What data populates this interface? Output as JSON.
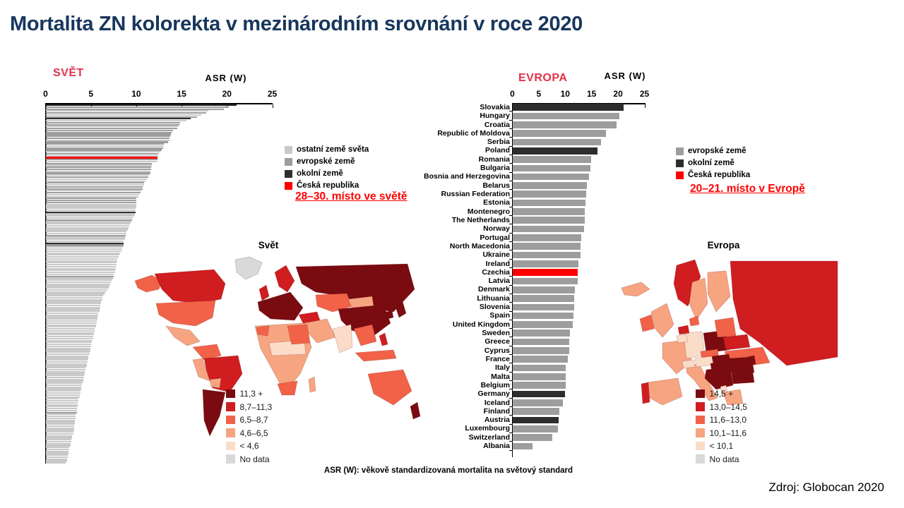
{
  "title": "Mortalita ZN kolorekta v mezinárodním srovnání v roce 2020",
  "source": "Zdroj: Globocan 2020",
  "footnote": "ASR (W): věkově standardizovaná mortalita na světový standard",
  "accent_colors": {
    "heading_red": "#e2314a",
    "note_red": "#fe0000",
    "title_navy": "#17365d"
  },
  "bar_palette": {
    "world_other": "#c9c9c9",
    "european": "#9d9d9d",
    "neighbor": "#2d2d2d",
    "czech": "#fe0000"
  },
  "map_palette": {
    "band1": "#7a0b10",
    "band2": "#cf1d20",
    "band3": "#f16248",
    "band4": "#f7a481",
    "band5": "#fbdcc9",
    "nodata": "#d9d9d9"
  },
  "world_chart": {
    "heading": "SVĚT",
    "axis_label": "ASR (W)",
    "rank_note": "28–30. místo ve světě",
    "legend": [
      {
        "label": "ostatní země světa",
        "color": "#c9c9c9"
      },
      {
        "label": "evropské země",
        "color": "#9d9d9d"
      },
      {
        "label": "okolní země",
        "color": "#2d2d2d"
      },
      {
        "label": "Česká republika",
        "color": "#fe0000"
      }
    ]
  },
  "europe_chart": {
    "heading": "EVROPA",
    "axis_label": "ASR (W)",
    "rank_note": "20–21. místo v Evropě",
    "legend": [
      {
        "label": "evropské země",
        "color": "#9d9d9d"
      },
      {
        "label": "okolní země",
        "color": "#2d2d2d"
      },
      {
        "label": "Česká republika",
        "color": "#fe0000"
      }
    ]
  },
  "world_map": {
    "title": "Svět",
    "legend": [
      {
        "label": "11,3 +",
        "color": "#7a0b10"
      },
      {
        "label": "8,7–11,3",
        "color": "#cf1d20"
      },
      {
        "label": "6,5–8,7",
        "color": "#f16248"
      },
      {
        "label": "4,6–6,5",
        "color": "#f7a481"
      },
      {
        "label": "< 4,6",
        "color": "#fbdcc9"
      },
      {
        "label": "No data",
        "color": "#d9d9d9"
      }
    ]
  },
  "europe_map": {
    "title": "Evropa",
    "legend": [
      {
        "label": "14,5 +",
        "color": "#7a0b10"
      },
      {
        "label": "13,0–14,5",
        "color": "#cf1d20"
      },
      {
        "label": "11,6–13,0",
        "color": "#f16248"
      },
      {
        "label": "10,1–11,6",
        "color": "#f7a481"
      },
      {
        "label": "< 10,1",
        "color": "#fbdcc9"
      },
      {
        "label": "No data",
        "color": "#d9d9d9"
      }
    ]
  },
  "chart_data": [
    {
      "type": "bar",
      "title": "SVĚT",
      "orientation": "horizontal",
      "xlabel": "ASR (W)",
      "xlim": [
        0,
        25
      ],
      "xticks": [
        0,
        5,
        10,
        15,
        20,
        25
      ],
      "values": [
        21.0,
        20.2,
        19.6,
        17.9,
        17.7,
        17.1,
        16.7,
        16.0,
        15.5,
        14.8,
        14.7,
        14.6,
        14.5,
        14.0,
        13.9,
        13.8,
        13.7,
        13.6,
        13.6,
        13.5,
        13.0,
        13.0,
        12.9,
        12.8,
        12.6,
        12.4,
        12.4,
        12.3,
        12.3,
        12.2,
        11.7,
        11.7,
        11.6,
        11.6,
        11.5,
        11.5,
        11.4,
        11.3,
        11.1,
        11.0,
        10.8,
        10.8,
        10.7,
        10.7,
        10.5,
        10.4,
        10.3,
        10.2,
        10.0,
        10.0,
        10.0,
        10.0,
        10.0,
        9.9,
        9.9,
        9.9,
        9.8,
        9.7,
        9.6,
        9.5,
        9.4,
        9.3,
        9.2,
        9.1,
        9.0,
        8.9,
        8.9,
        8.8,
        8.7,
        8.7,
        8.6,
        8.6,
        8.6,
        8.5,
        8.4,
        8.3,
        8.2,
        8.1,
        8.0,
        7.9,
        7.9,
        7.8,
        7.8,
        7.7,
        7.7,
        7.6,
        7.6,
        7.5,
        7.5,
        7.4,
        7.3,
        7.2,
        7.1,
        7.0,
        6.9,
        6.8,
        6.6,
        6.5,
        6.3,
        6.2,
        6.2,
        6.1,
        6.1,
        6.0,
        6.0,
        5.9,
        5.9,
        5.8,
        5.8,
        5.7,
        5.7,
        5.6,
        5.6,
        5.5,
        5.5,
        5.4,
        5.4,
        5.3,
        5.3,
        5.2,
        5.2,
        5.1,
        5.1,
        5.0,
        5.0,
        4.9,
        4.9,
        4.8,
        4.8,
        4.7,
        4.7,
        4.6,
        4.6,
        4.5,
        4.5,
        4.4,
        4.4,
        4.3,
        4.3,
        4.2,
        4.2,
        4.1,
        4.1,
        4.0,
        4.0,
        3.9,
        3.9,
        3.8,
        3.8,
        3.7,
        3.7,
        3.6,
        3.6,
        3.5,
        3.5,
        3.5,
        3.4,
        3.4,
        3.4,
        3.3,
        3.3,
        3.3,
        3.2,
        3.2,
        3.2,
        3.1,
        3.1,
        3.1,
        3.0,
        3.0,
        2.9,
        2.9,
        2.8,
        2.8,
        2.7,
        2.7,
        2.6,
        2.6,
        2.5,
        2.5,
        2.4,
        2.4,
        2.3,
        2.3,
        2.2
      ],
      "european_ranks": [
        2,
        3,
        5,
        7,
        10,
        11,
        13,
        14,
        15,
        16,
        17,
        18,
        20,
        21,
        23,
        24,
        26,
        29,
        31,
        33,
        34,
        36,
        38,
        41,
        43,
        44,
        46,
        49,
        50,
        51,
        60,
        68,
        73,
        89,
        159
      ],
      "neighbor_ranks": [
        1,
        8,
        56,
        72
      ],
      "czech_rank": 28,
      "czech_value": 12.3
    },
    {
      "type": "bar",
      "title": "EVROPA",
      "orientation": "horizontal",
      "xlabel": "ASR (W)",
      "xlim": [
        0,
        25
      ],
      "xticks": [
        0,
        5,
        10,
        15,
        20,
        25
      ],
      "countries": [
        {
          "name": "Slovakia",
          "value": 21.0,
          "type": "neighbor"
        },
        {
          "name": "Hungary",
          "value": 20.2,
          "type": "european"
        },
        {
          "name": "Croatia",
          "value": 19.6,
          "type": "european"
        },
        {
          "name": "Republic of Moldova",
          "value": 17.7,
          "type": "european"
        },
        {
          "name": "Serbia",
          "value": 16.7,
          "type": "european"
        },
        {
          "name": "Poland",
          "value": 16.0,
          "type": "neighbor"
        },
        {
          "name": "Romania",
          "value": 14.8,
          "type": "european"
        },
        {
          "name": "Bulgaria",
          "value": 14.7,
          "type": "european"
        },
        {
          "name": "Bosnia and Herzegovina",
          "value": 14.5,
          "type": "european"
        },
        {
          "name": "Belarus",
          "value": 14.0,
          "type": "european"
        },
        {
          "name": "Russian Federation",
          "value": 13.9,
          "type": "european"
        },
        {
          "name": "Estonia",
          "value": 13.8,
          "type": "european"
        },
        {
          "name": "Montenegro",
          "value": 13.7,
          "type": "european"
        },
        {
          "name": "The Netherlands",
          "value": 13.6,
          "type": "european"
        },
        {
          "name": "Norway",
          "value": 13.5,
          "type": "european"
        },
        {
          "name": "Portugal",
          "value": 13.0,
          "type": "european"
        },
        {
          "name": "North Macedonia",
          "value": 12.9,
          "type": "european"
        },
        {
          "name": "Ukraine",
          "value": 12.8,
          "type": "european"
        },
        {
          "name": "Ireland",
          "value": 12.4,
          "type": "european"
        },
        {
          "name": "Czechia",
          "value": 12.3,
          "type": "czech"
        },
        {
          "name": "Latvia",
          "value": 12.3,
          "type": "european"
        },
        {
          "name": "Denmark",
          "value": 11.7,
          "type": "european"
        },
        {
          "name": "Lithuania",
          "value": 11.6,
          "type": "european"
        },
        {
          "name": "Slovenia",
          "value": 11.6,
          "type": "european"
        },
        {
          "name": "Spain",
          "value": 11.5,
          "type": "european"
        },
        {
          "name": "United Kingdom",
          "value": 11.3,
          "type": "european"
        },
        {
          "name": "Sweden",
          "value": 10.8,
          "type": "european"
        },
        {
          "name": "Greece",
          "value": 10.7,
          "type": "european"
        },
        {
          "name": "Cyprus",
          "value": 10.7,
          "type": "european"
        },
        {
          "name": "France",
          "value": 10.4,
          "type": "european"
        },
        {
          "name": "Italy",
          "value": 10.0,
          "type": "european"
        },
        {
          "name": "Malta",
          "value": 10.0,
          "type": "european"
        },
        {
          "name": "Belgium",
          "value": 10.0,
          "type": "european"
        },
        {
          "name": "Germany",
          "value": 9.9,
          "type": "neighbor"
        },
        {
          "name": "Iceland",
          "value": 9.5,
          "type": "european"
        },
        {
          "name": "Finland",
          "value": 8.8,
          "type": "european"
        },
        {
          "name": "Austria",
          "value": 8.7,
          "type": "neighbor"
        },
        {
          "name": "Luxembourg",
          "value": 8.6,
          "type": "european"
        },
        {
          "name": "Switzerland",
          "value": 7.5,
          "type": "european"
        },
        {
          "name": "Albania",
          "value": 3.8,
          "type": "european"
        }
      ]
    }
  ]
}
